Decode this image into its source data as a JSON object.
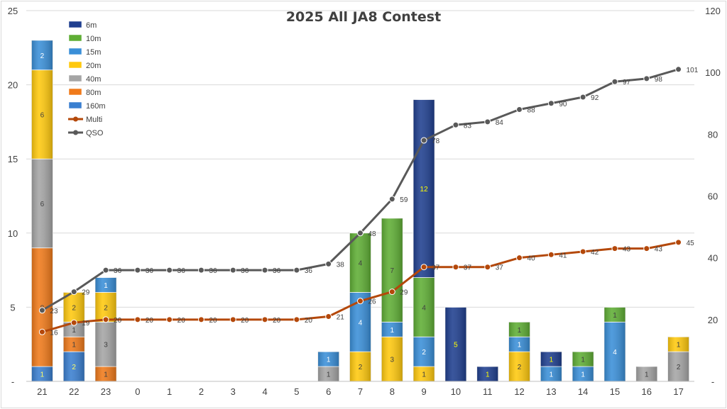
{
  "chart_data": {
    "type": "bar",
    "title": "2025 All JA8 Contest",
    "categories": [
      "21",
      "22",
      "23",
      "0",
      "1",
      "2",
      "3",
      "4",
      "5",
      "6",
      "7",
      "8",
      "9",
      "10",
      "11",
      "12",
      "13",
      "14",
      "15",
      "16",
      "17"
    ],
    "ylim_left": [
      0,
      25
    ],
    "yticks_left": [
      0,
      5,
      10,
      15,
      20,
      25
    ],
    "yticks_left_labels": [
      "-",
      "5",
      "10",
      "15",
      "20",
      "25"
    ],
    "ylim_right": [
      0,
      120
    ],
    "yticks_right": [
      0,
      20,
      40,
      60,
      80,
      100,
      120
    ],
    "yticks_right_labels": [
      "-",
      "20",
      "40",
      "60",
      "80",
      "100",
      "120"
    ],
    "grid": true,
    "legend_position": "top-left",
    "stack_order": [
      "160m",
      "80m",
      "40m",
      "20m",
      "15m",
      "10m",
      "6m"
    ],
    "series": [
      {
        "name": "6m",
        "kind": "bar",
        "color": "#1f3f8f",
        "label_color": "#ffff00",
        "values": [
          0,
          0,
          0,
          0,
          0,
          0,
          0,
          0,
          0,
          0,
          0,
          0,
          12,
          5,
          1,
          0,
          1,
          0,
          0,
          0,
          0
        ]
      },
      {
        "name": "10m",
        "kind": "bar",
        "color": "#5fae35",
        "label_color": "#404040",
        "values": [
          0,
          0,
          0,
          0,
          0,
          0,
          0,
          0,
          0,
          0,
          4,
          7,
          4,
          0,
          0,
          1,
          0,
          1,
          1,
          0,
          0
        ]
      },
      {
        "name": "15m",
        "kind": "bar",
        "color": "#3a8fd8",
        "label_color": "#ffffff",
        "values": [
          2,
          0,
          1,
          0,
          0,
          0,
          0,
          0,
          0,
          1,
          4,
          1,
          2,
          0,
          0,
          1,
          1,
          1,
          4,
          0,
          0
        ]
      },
      {
        "name": "20m",
        "kind": "bar",
        "color": "#ffc90e",
        "label_color": "#404040",
        "values": [
          6,
          2,
          2,
          0,
          0,
          0,
          0,
          0,
          0,
          0,
          2,
          3,
          1,
          0,
          0,
          2,
          0,
          0,
          0,
          0,
          1
        ]
      },
      {
        "name": "40m",
        "kind": "bar",
        "color": "#a5a5a5",
        "label_color": "#404040",
        "values": [
          6,
          1,
          3,
          0,
          0,
          0,
          0,
          0,
          0,
          1,
          0,
          0,
          0,
          0,
          0,
          0,
          0,
          0,
          0,
          1,
          2
        ]
      },
      {
        "name": "80m",
        "kind": "bar",
        "color": "#f07a1a",
        "label_color": "#404040",
        "values": [
          8,
          1,
          1,
          0,
          0,
          0,
          0,
          0,
          0,
          0,
          0,
          0,
          0,
          0,
          0,
          0,
          0,
          0,
          0,
          0,
          0
        ]
      },
      {
        "name": "160m",
        "kind": "bar",
        "color": "#3a7fd0",
        "label_color": "#ffff66",
        "values": [
          1,
          2,
          0,
          0,
          0,
          0,
          0,
          0,
          0,
          0,
          0,
          0,
          0,
          0,
          0,
          0,
          0,
          0,
          0,
          0,
          0
        ]
      },
      {
        "name": "Multi",
        "kind": "line",
        "axis": "right",
        "color": "#b4480a",
        "values": [
          16,
          19,
          20,
          20,
          20,
          20,
          20,
          20,
          20,
          21,
          26,
          29,
          37,
          37,
          37,
          40,
          41,
          42,
          43,
          43,
          45
        ]
      },
      {
        "name": "QSO",
        "kind": "line",
        "axis": "right",
        "color": "#595959",
        "values": [
          23,
          29,
          36,
          36,
          36,
          36,
          36,
          36,
          36,
          38,
          48,
          59,
          78,
          83,
          84,
          88,
          90,
          92,
          97,
          98,
          101
        ]
      }
    ],
    "legend_order": [
      "6m",
      "10m",
      "15m",
      "20m",
      "40m",
      "80m",
      "160m",
      "Multi",
      "QSO"
    ]
  }
}
